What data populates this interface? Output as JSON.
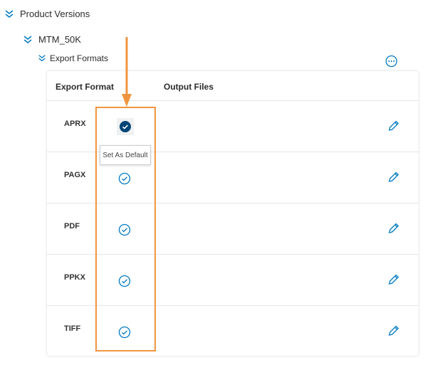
{
  "tree": {
    "level1": "Product Versions",
    "level2": "MTM_50K",
    "level3": "Export Formats"
  },
  "table": {
    "columns": [
      "Export Format",
      "Output Files"
    ],
    "rows": [
      {
        "format": "APRX",
        "default": true
      },
      {
        "format": "PAGX",
        "default": false
      },
      {
        "format": "PDF",
        "default": false
      },
      {
        "format": "PPKX",
        "default": false
      },
      {
        "format": "TIFF",
        "default": false
      }
    ]
  },
  "tooltip": "Set As Default",
  "colors": {
    "accent": "#0079c1",
    "default_check": "#004575",
    "annotation": "#f0953f"
  }
}
